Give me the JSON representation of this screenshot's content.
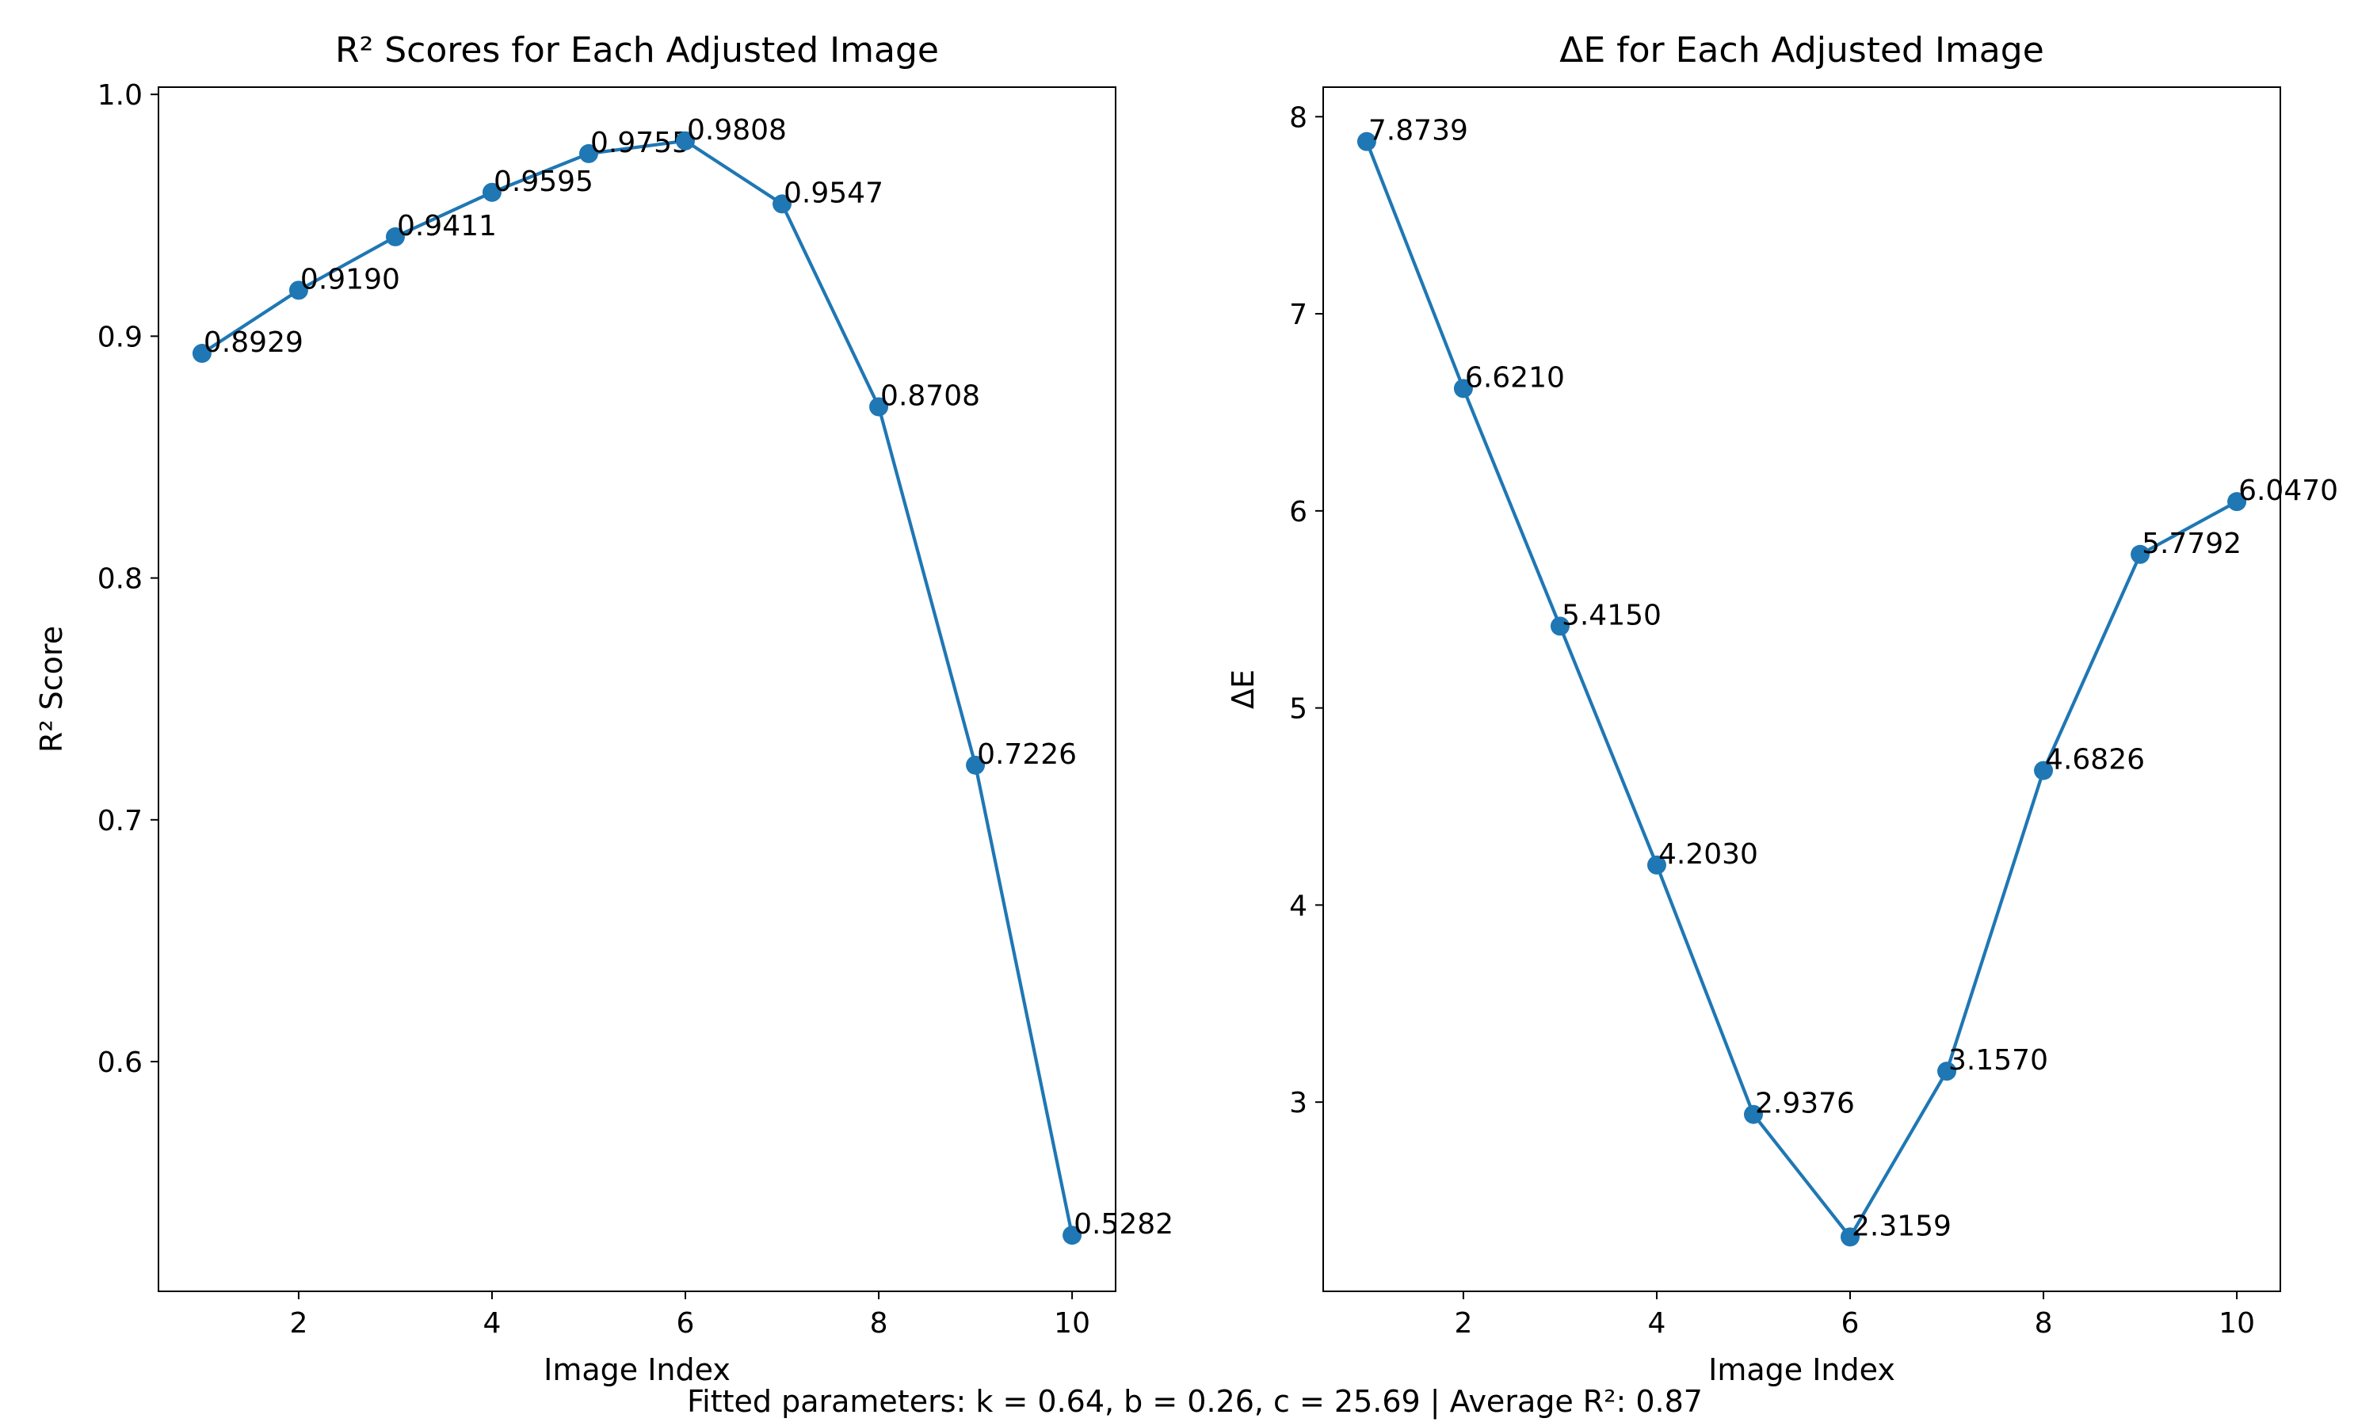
{
  "chart_data": [
    {
      "type": "line",
      "title": "R² Scores for Each Adjusted Image",
      "xlabel": "Image Index",
      "ylabel": "R² Score",
      "x": [
        1,
        2,
        3,
        4,
        5,
        6,
        7,
        8,
        9,
        10
      ],
      "values": [
        0.8929,
        0.919,
        0.9411,
        0.9595,
        0.9755,
        0.9808,
        0.9547,
        0.8708,
        0.7226,
        0.5282
      ],
      "labels": [
        "0.8929",
        "0.9190",
        "0.9411",
        "0.9595",
        "0.9755",
        "0.9808",
        "0.9547",
        "0.8708",
        "0.7226",
        "0.5282"
      ],
      "xlim": [
        0.55,
        10.45
      ],
      "ylim": [
        0.505,
        1.003
      ],
      "xticks": [
        2,
        4,
        6,
        8,
        10
      ],
      "xtick_labels": [
        "2",
        "4",
        "6",
        "8",
        "10"
      ],
      "yticks": [
        0.6,
        0.7,
        0.8,
        0.9,
        1.0
      ],
      "ytick_labels": [
        "0.6",
        "0.7",
        "0.8",
        "0.9",
        "1.0"
      ],
      "grid": false,
      "color": "#1f77b4"
    },
    {
      "type": "line",
      "title": "ΔE for Each Adjusted Image",
      "xlabel": "Image Index",
      "ylabel": "ΔE",
      "x": [
        1,
        2,
        3,
        4,
        5,
        6,
        7,
        8,
        9,
        10
      ],
      "values": [
        7.8739,
        6.621,
        5.415,
        4.203,
        2.9376,
        2.3159,
        3.157,
        4.6826,
        5.7792,
        6.047
      ],
      "labels": [
        "7.8739",
        "6.6210",
        "5.4150",
        "4.2030",
        "2.9376",
        "2.3159",
        "3.1570",
        "4.6826",
        "5.7792",
        "6.0470"
      ],
      "xlim": [
        0.55,
        10.45
      ],
      "ylim": [
        2.04,
        8.15
      ],
      "xticks": [
        2,
        4,
        6,
        8,
        10
      ],
      "xtick_labels": [
        "2",
        "4",
        "6",
        "8",
        "10"
      ],
      "yticks": [
        3,
        4,
        5,
        6,
        7,
        8
      ],
      "ytick_labels": [
        "3",
        "4",
        "5",
        "6",
        "7",
        "8"
      ],
      "grid": false,
      "color": "#1f77b4"
    }
  ],
  "footer": "Fitted parameters: k = 0.64, b = 0.26, c = 25.69 | Average R²: 0.87"
}
